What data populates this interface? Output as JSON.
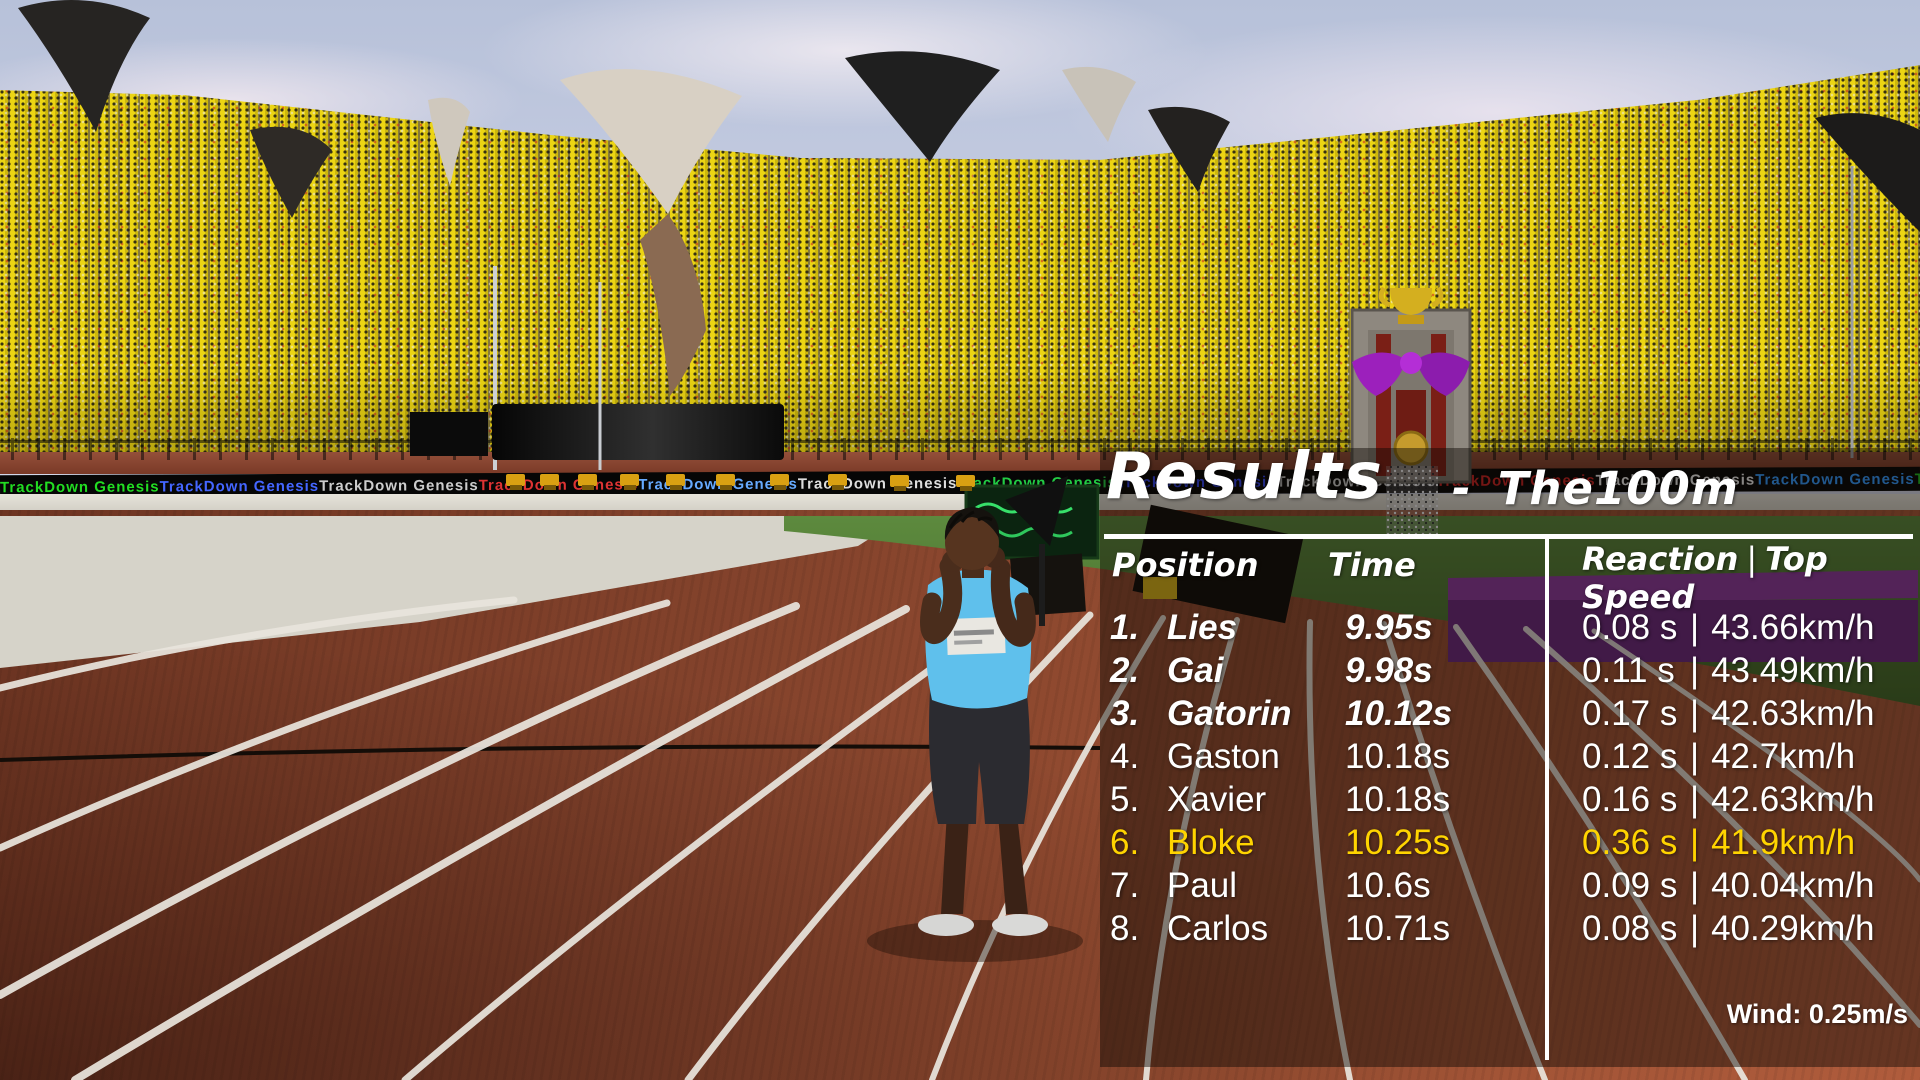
{
  "panel": {
    "title": "Results",
    "dash": "-",
    "event": "The100m",
    "columns": {
      "position": "Position",
      "time": "Time",
      "reaction": "Reaction",
      "separator": "|",
      "top_speed": "Top Speed"
    },
    "rows": [
      {
        "pos": "1.",
        "name": "Lies",
        "time": "9.95s",
        "reaction": "0.08 s",
        "speed": "43.66km/h",
        "top3": true,
        "highlight": false
      },
      {
        "pos": "2.",
        "name": "Gai",
        "time": "9.98s",
        "reaction": "0.11 s",
        "speed": "43.49km/h",
        "top3": true,
        "highlight": false
      },
      {
        "pos": "3.",
        "name": "Gatorin",
        "time": "10.12s",
        "reaction": "0.17 s",
        "speed": "42.63km/h",
        "top3": true,
        "highlight": false
      },
      {
        "pos": "4.",
        "name": "Gaston",
        "time": "10.18s",
        "reaction": "0.12 s",
        "speed": "42.7km/h",
        "top3": false,
        "highlight": false
      },
      {
        "pos": "5.",
        "name": "Xavier",
        "time": "10.18s",
        "reaction": "0.16 s",
        "speed": "42.63km/h",
        "top3": false,
        "highlight": false
      },
      {
        "pos": "6.",
        "name": "Bloke",
        "time": "10.25s",
        "reaction": "0.36 s",
        "speed": "41.9km/h",
        "top3": false,
        "highlight": true
      },
      {
        "pos": "7.",
        "name": "Paul",
        "time": "10.6s",
        "reaction": "0.09 s",
        "speed": "40.04km/h",
        "top3": false,
        "highlight": false
      },
      {
        "pos": "8.",
        "name": "Carlos",
        "time": "10.71s",
        "reaction": "0.08 s",
        "speed": "40.29km/h",
        "top3": false,
        "highlight": false
      }
    ],
    "wind": "Wind: 0.25m/s",
    "highlight_color": "#ffd400",
    "text_color": "#ffffff"
  },
  "scene": {
    "led_text": "TrackDown Genesis",
    "led_colors": [
      "#22dd22",
      "#4466ff",
      "#cccccc",
      "#dd3333",
      "#66aaff",
      "#dddddd",
      "#22cc44",
      "#3344ee",
      "#cccccc",
      "#cc2222",
      "#eeeeee",
      "#3399ff",
      "#22bb22"
    ]
  }
}
